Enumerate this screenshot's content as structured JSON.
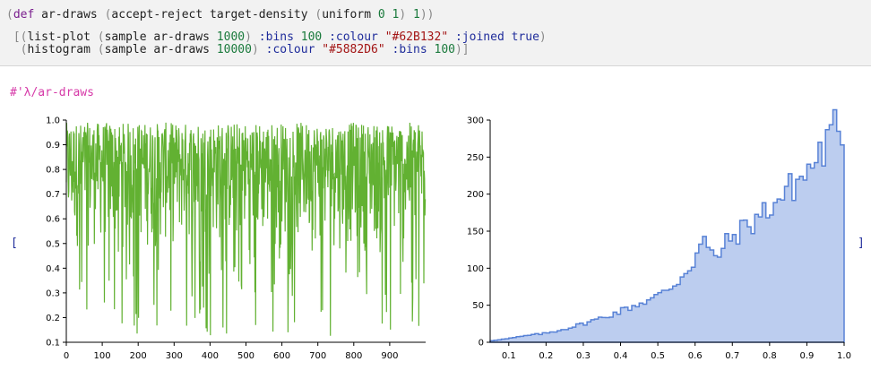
{
  "code": {
    "line1": {
      "p_open": "(",
      "def": "def",
      "name": " ar-draws ",
      "p2": "(",
      "fn": "accept-reject target-density ",
      "p3": "(",
      "uniform": "uniform ",
      "zero": "0",
      "sp": " ",
      "one": "1",
      "p3c": ")",
      "sp2": " ",
      "one2": "1",
      "p_close": "))"
    },
    "line2": {
      "lead": " [",
      "p1": "(",
      "fn": "list-plot ",
      "p2": "(",
      "inner": "sample ar-draws ",
      "n": "1000",
      "p2c": ")",
      "sp": " ",
      "kw_bins": ":bins",
      "sp2": " ",
      "bins": "100",
      "sp3": " ",
      "kw_colour": ":colour",
      "sp4": " ",
      "colour": "\"#62B132\"",
      "sp5": " ",
      "kw_joined": ":joined",
      "sp6": " ",
      "joined": "true",
      "p1c": ")"
    },
    "line3": {
      "lead": "  ",
      "p1": "(",
      "fn": "histogram ",
      "p2": "(",
      "inner": "sample ar-draws ",
      "n": "10000",
      "p2c": ")",
      "sp": " ",
      "kw_colour": ":colour",
      "sp2": " ",
      "colour": "\"#5882D6\"",
      "sp3": " ",
      "kw_bins": ":bins",
      "sp4": " ",
      "bins": "100",
      "p1c": ")]"
    }
  },
  "output": {
    "label": "#'λ/ar-draws",
    "open_bracket": "[",
    "close_bracket": "]"
  },
  "colors": {
    "line_plot": "#62B132",
    "histogram": "#5882D6",
    "histogram_fill": "#BCCDEF"
  },
  "chart_data": [
    {
      "type": "line",
      "ylim": [
        0.1,
        1.0
      ],
      "xlim": [
        0,
        1000
      ],
      "x_ticks": [
        "0",
        "100",
        "200",
        "300",
        "400",
        "500",
        "600",
        "700",
        "800",
        "900"
      ],
      "y_ticks": [
        "0.1",
        "0.2",
        "0.3",
        "0.4",
        "0.5",
        "0.6",
        "0.7",
        "0.8",
        "0.9",
        "1.0"
      ],
      "n_points": 1000,
      "values_note": "1000 sampled draws; values mostly 0.5–1.0, occasional dips to 0.12"
    },
    {
      "type": "area",
      "xlim": [
        0.05,
        1.0
      ],
      "ylim": [
        0,
        300
      ],
      "x_ticks": [
        "0.1",
        "0.2",
        "0.3",
        "0.4",
        "0.5",
        "0.6",
        "0.7",
        "0.8",
        "0.9",
        "1.0"
      ],
      "y_ticks": [
        "0",
        "50",
        "100",
        "150",
        "200",
        "250",
        "300"
      ],
      "x": [
        0.05,
        0.1,
        0.15,
        0.2,
        0.25,
        0.3,
        0.35,
        0.4,
        0.45,
        0.5,
        0.55,
        0.6,
        0.62,
        0.65,
        0.7,
        0.75,
        0.8,
        0.85,
        0.9,
        0.93,
        0.96,
        0.98,
        1.0
      ],
      "values": [
        2,
        5,
        9,
        12,
        18,
        25,
        33,
        42,
        52,
        62,
        80,
        112,
        140,
        112,
        142,
        160,
        182,
        205,
        228,
        250,
        270,
        292,
        0
      ]
    }
  ]
}
